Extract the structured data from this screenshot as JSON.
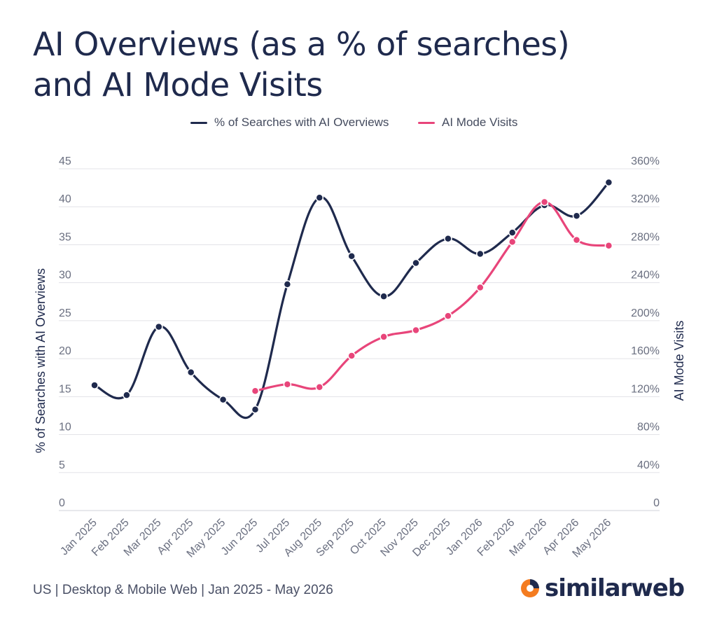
{
  "title_line1": "AI Overviews (as a % of searches)",
  "title_line2": "and AI Mode Visits",
  "legend": {
    "series1": "% of Searches with AI Overviews",
    "series2": "AI Mode Visits"
  },
  "footer": "US | Desktop & Mobile Web | Jan 2025 - May 2026",
  "brand": "similarweb",
  "colors": {
    "navy": "#1f2a4d",
    "pink": "#e8457a",
    "grid": "#e3e3e8",
    "orange": "#f47c20"
  },
  "chart_data": {
    "type": "line",
    "categories": [
      "Jan 2025",
      "Feb 2025",
      "Mar 2025",
      "Apr 2025",
      "May 2025",
      "Jun 2025",
      "Jul 2025",
      "Aug 2025",
      "Sep 2025",
      "Oct 2025",
      "Nov 2025",
      "Dec 2025",
      "Jan 2026",
      "Feb 2026",
      "Mar 2026",
      "Apr 2026",
      "May 2026"
    ],
    "y_left": {
      "label": "% of Searches with AI Overviews",
      "ticks": [
        "0",
        "5",
        "10",
        "15",
        "20",
        "25",
        "30",
        "35",
        "40",
        "45"
      ],
      "range": [
        0,
        45
      ]
    },
    "y_right": {
      "label": "AI Mode Visits",
      "ticks": [
        "0",
        "40%",
        "80%",
        "120%",
        "160%",
        "200%",
        "240%",
        "280%",
        "320%",
        "360%"
      ],
      "range": [
        0,
        360
      ]
    },
    "series": [
      {
        "name": "% of Searches with AI Overviews",
        "axis": "left",
        "values": [
          16.5,
          15.2,
          24.2,
          18.2,
          14.6,
          13.3,
          29.8,
          41.2,
          33.5,
          28.2,
          32.6,
          35.8,
          33.8,
          36.6,
          40.2,
          38.8,
          43.2
        ]
      },
      {
        "name": "AI Mode Visits",
        "axis": "right",
        "values": [
          null,
          null,
          null,
          null,
          null,
          126,
          133,
          130,
          163,
          183,
          190,
          205,
          235,
          283,
          325,
          285,
          279
        ]
      }
    ],
    "grid": true,
    "legend_position": "top-center"
  }
}
